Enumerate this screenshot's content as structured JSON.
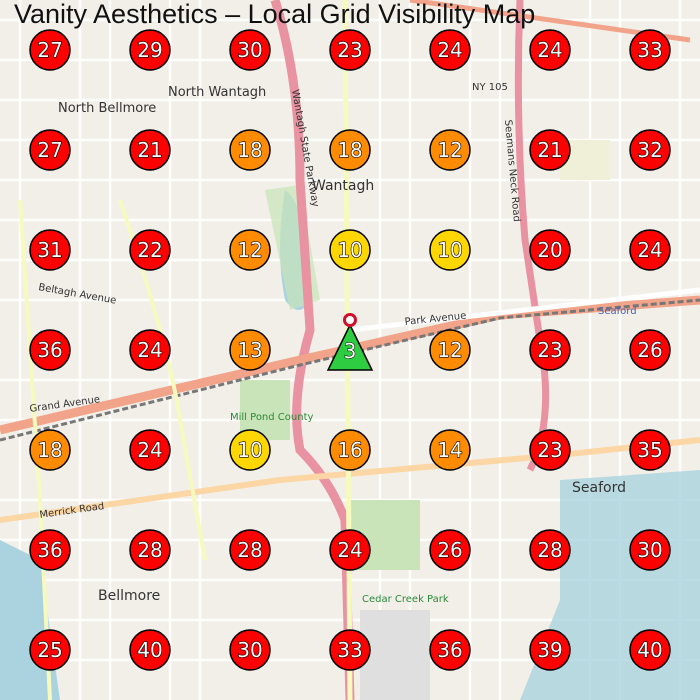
{
  "title": "Vanity Aesthetics – Local Grid Visibility Map",
  "colors": {
    "red": "#ff0000",
    "orange": "#ff8c00",
    "yellow": "#ffd700",
    "green": "#2ecc40",
    "pin": "#d0102a"
  },
  "grid": {
    "rows": [
      [
        27,
        29,
        30,
        23,
        24,
        24,
        33
      ],
      [
        27,
        21,
        18,
        18,
        12,
        21,
        32
      ],
      [
        31,
        22,
        12,
        10,
        10,
        20,
        24
      ],
      [
        36,
        24,
        13,
        null,
        12,
        23,
        26
      ],
      [
        18,
        24,
        10,
        16,
        14,
        23,
        35
      ],
      [
        36,
        28,
        28,
        24,
        26,
        28,
        30
      ],
      [
        25,
        40,
        30,
        33,
        36,
        39,
        40
      ]
    ]
  },
  "business_marker": {
    "rank": "3",
    "icon": "triangle-marker"
  },
  "map_labels": {
    "north_wantagh": "North Wantagh",
    "north_bellmore": "North Bellmore",
    "wantagh": "Wantagh",
    "seaford": "Seaford",
    "bellmore": "Bellmore",
    "park_avenue": "Park Avenue",
    "beltagh_avenue": "Beltagh Avenue",
    "grand_avenue": "Grand Avenue",
    "merrick_road": "Merrick Road",
    "wantagh_state_parkway": "Wantagh State Parkway",
    "seamans_neck_road": "Seamans Neck Road",
    "mill_pond": "Mill Pond County",
    "cedar_creek_park": "Cedar Creek Park",
    "ny105": "NY 105",
    "seaford_station": "Seaford"
  }
}
